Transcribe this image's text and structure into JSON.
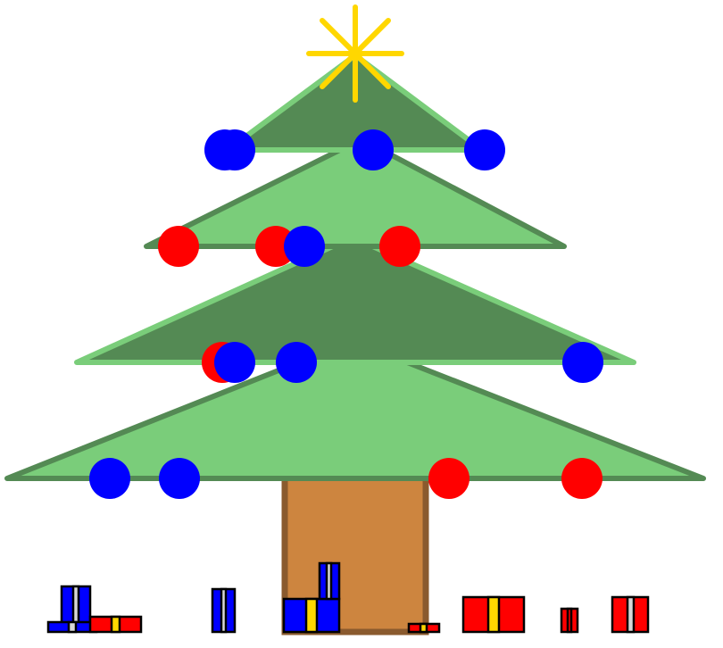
{
  "colors": {
    "background": "#ffffff",
    "tier_light_fill": "#7acd7a",
    "tier_dark_fill": "#548a54",
    "trunk_fill": "#cd853f",
    "trunk_stroke": "#8a5a2e",
    "star": "#ffd700",
    "ornament_blue": "#0000ff",
    "ornament_red": "#ff0000",
    "gift_outline": "#000000",
    "ribbon_yellow": "#ffd700",
    "ribbon_white": "#d8d8d8"
  },
  "scene": {
    "star_icon": "star-icon",
    "ornament_colors": [
      "blue",
      "blue",
      "blue",
      "blue",
      "red",
      "red",
      "blue",
      "red",
      "red",
      "blue",
      "blue",
      "blue",
      "blue",
      "blue",
      "red",
      "red"
    ],
    "gifts": [
      {
        "box": "blue",
        "ribbon": "white"
      },
      {
        "box": "blue",
        "ribbon": "white"
      },
      {
        "box": "red",
        "ribbon": "yellow"
      },
      {
        "box": "blue",
        "ribbon": "white"
      },
      {
        "box": "blue",
        "ribbon": "yellow"
      },
      {
        "box": "blue",
        "ribbon": "white"
      },
      {
        "box": "red",
        "ribbon": "yellow"
      },
      {
        "box": "red",
        "ribbon": "yellow"
      },
      {
        "box": "red",
        "ribbon": "red"
      },
      {
        "box": "red",
        "ribbon": "white"
      }
    ]
  }
}
